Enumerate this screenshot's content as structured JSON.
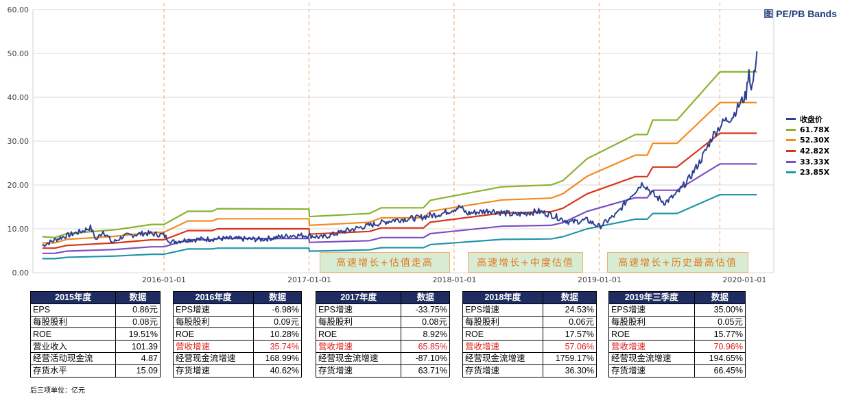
{
  "chart_data": {
    "type": "line",
    "title": "图 PE/PB Bands",
    "y_ticks": [
      "60.00",
      "50.00",
      "40.00",
      "30.00",
      "20.00",
      "10.00",
      "0.00"
    ],
    "ylim": [
      0,
      60
    ],
    "x_ticks": [
      "2016-01-01",
      "2017-01-01",
      "2018-01-01",
      "2019-01-01",
      "2020-01-01"
    ],
    "legend_position": "right",
    "grid": true,
    "vertical_markers": [
      "2016-01-01",
      "2016-12-31",
      "2017-12-31",
      "2018-12-31",
      "2019-10-31"
    ],
    "series": [
      {
        "name": "收盘价",
        "color": "#2b3f8f",
        "points": [
          [
            "2015-03-01",
            6.2
          ],
          [
            "2015-04-15",
            8.0
          ],
          [
            "2015-06-10",
            9.5
          ],
          [
            "2015-06-30",
            10.3
          ],
          [
            "2015-07-15",
            7.5
          ],
          [
            "2015-08-01",
            9.5
          ],
          [
            "2015-08-25",
            6.8
          ],
          [
            "2015-09-20",
            8.3
          ],
          [
            "2015-11-15",
            9.0
          ],
          [
            "2015-12-31",
            8.6
          ],
          [
            "2016-01-20",
            7.0
          ],
          [
            "2016-03-01",
            7.5
          ],
          [
            "2016-06-01",
            7.8
          ],
          [
            "2016-09-01",
            7.6
          ],
          [
            "2016-11-20",
            8.5
          ],
          [
            "2016-12-31",
            8.5
          ],
          [
            "2017-02-01",
            8.0
          ],
          [
            "2017-04-01",
            9.5
          ],
          [
            "2017-06-01",
            10.8
          ],
          [
            "2017-08-01",
            12.0
          ],
          [
            "2017-10-01",
            12.5
          ],
          [
            "2017-12-01",
            13.5
          ],
          [
            "2018-01-15",
            15.0
          ],
          [
            "2018-02-01",
            13.5
          ],
          [
            "2018-04-01",
            14.2
          ],
          [
            "2018-06-01",
            13.2
          ],
          [
            "2018-08-01",
            14.0
          ],
          [
            "2018-09-01",
            13.2
          ],
          [
            "2018-10-20",
            11.5
          ],
          [
            "2018-12-01",
            12.0
          ],
          [
            "2019-01-01",
            10.5
          ],
          [
            "2019-02-15",
            13.5
          ],
          [
            "2019-03-15",
            17.0
          ],
          [
            "2019-04-20",
            20.5
          ],
          [
            "2019-05-20",
            17.5
          ],
          [
            "2019-06-15",
            16.0
          ],
          [
            "2019-07-15",
            18.0
          ],
          [
            "2019-08-15",
            21.5
          ],
          [
            "2019-09-15",
            26.0
          ],
          [
            "2019-10-15",
            31.5
          ],
          [
            "2019-11-10",
            34.5
          ],
          [
            "2019-12-01",
            35.5
          ],
          [
            "2019-12-20",
            38.5
          ],
          [
            "2020-01-05",
            40.5
          ],
          [
            "2020-01-12",
            46.5
          ],
          [
            "2020-01-18",
            41.5
          ],
          [
            "2020-01-25",
            45.0
          ],
          [
            "2020-02-01",
            50.5
          ]
        ]
      },
      {
        "name": "61.78X",
        "color": "#8ab22e",
        "points": [
          [
            "2015-03-01",
            8.2
          ],
          [
            "2015-04-01",
            8.0
          ],
          [
            "2015-05-01",
            8.9
          ],
          [
            "2015-09-01",
            9.8
          ],
          [
            "2015-12-01",
            11.0
          ],
          [
            "2016-01-01",
            11.0
          ],
          [
            "2016-03-01",
            14.0
          ],
          [
            "2016-05-01",
            14.0
          ],
          [
            "2016-05-15",
            14.6
          ],
          [
            "2016-12-31",
            14.5
          ],
          [
            "2017-01-01",
            12.8
          ],
          [
            "2017-06-01",
            13.5
          ],
          [
            "2017-07-01",
            14.8
          ],
          [
            "2017-10-15",
            14.8
          ],
          [
            "2017-11-01",
            16.5
          ],
          [
            "2018-05-01",
            19.6
          ],
          [
            "2018-09-01",
            20.0
          ],
          [
            "2018-10-01",
            21.0
          ],
          [
            "2018-12-01",
            26.0
          ],
          [
            "2019-04-01",
            31.5
          ],
          [
            "2019-05-01",
            31.5
          ],
          [
            "2019-05-15",
            34.8
          ],
          [
            "2019-07-15",
            34.8
          ],
          [
            "2019-10-31",
            45.8
          ],
          [
            "2020-02-01",
            45.8
          ]
        ]
      },
      {
        "name": "52.30X",
        "color": "#f28a1e",
        "points": [
          [
            "2015-03-01",
            6.8
          ],
          [
            "2015-04-01",
            6.8
          ],
          [
            "2015-05-01",
            7.6
          ],
          [
            "2015-09-01",
            8.3
          ],
          [
            "2015-12-01",
            9.2
          ],
          [
            "2016-01-01",
            9.2
          ],
          [
            "2016-03-01",
            11.8
          ],
          [
            "2016-05-01",
            11.8
          ],
          [
            "2016-05-15",
            12.3
          ],
          [
            "2016-12-31",
            12.3
          ],
          [
            "2017-01-01",
            10.8
          ],
          [
            "2017-06-01",
            11.5
          ],
          [
            "2017-07-01",
            12.5
          ],
          [
            "2017-10-15",
            12.5
          ],
          [
            "2017-11-01",
            14.0
          ],
          [
            "2018-05-01",
            16.6
          ],
          [
            "2018-09-01",
            17.0
          ],
          [
            "2018-10-01",
            18.0
          ],
          [
            "2018-12-01",
            22.0
          ],
          [
            "2019-04-01",
            26.8
          ],
          [
            "2019-05-01",
            26.8
          ],
          [
            "2019-05-15",
            29.5
          ],
          [
            "2019-07-15",
            29.5
          ],
          [
            "2019-10-31",
            38.8
          ],
          [
            "2020-02-01",
            38.8
          ]
        ]
      },
      {
        "name": "42.82X",
        "color": "#d9341a",
        "points": [
          [
            "2015-03-01",
            5.6
          ],
          [
            "2015-04-01",
            5.6
          ],
          [
            "2015-05-01",
            6.2
          ],
          [
            "2015-09-01",
            6.8
          ],
          [
            "2015-12-01",
            7.5
          ],
          [
            "2016-01-01",
            7.5
          ],
          [
            "2016-03-01",
            9.6
          ],
          [
            "2016-05-01",
            9.6
          ],
          [
            "2016-05-15",
            10.0
          ],
          [
            "2016-12-31",
            10.0
          ],
          [
            "2017-01-01",
            8.8
          ],
          [
            "2017-06-01",
            9.4
          ],
          [
            "2017-07-01",
            10.2
          ],
          [
            "2017-10-15",
            10.2
          ],
          [
            "2017-11-01",
            11.5
          ],
          [
            "2018-05-01",
            13.6
          ],
          [
            "2018-09-01",
            13.9
          ],
          [
            "2018-10-01",
            14.7
          ],
          [
            "2018-12-01",
            18.0
          ],
          [
            "2019-04-01",
            21.9
          ],
          [
            "2019-05-01",
            21.9
          ],
          [
            "2019-05-15",
            24.1
          ],
          [
            "2019-07-15",
            24.1
          ],
          [
            "2019-10-31",
            31.8
          ],
          [
            "2020-02-01",
            31.8
          ]
        ]
      },
      {
        "name": "33.33X",
        "color": "#7b4fc4",
        "points": [
          [
            "2015-03-01",
            4.4
          ],
          [
            "2015-04-01",
            4.4
          ],
          [
            "2015-05-01",
            4.9
          ],
          [
            "2015-09-01",
            5.3
          ],
          [
            "2015-12-01",
            5.9
          ],
          [
            "2016-01-01",
            5.9
          ],
          [
            "2016-03-01",
            7.5
          ],
          [
            "2016-05-01",
            7.5
          ],
          [
            "2016-05-15",
            7.8
          ],
          [
            "2016-12-31",
            7.8
          ],
          [
            "2017-01-01",
            6.9
          ],
          [
            "2017-06-01",
            7.3
          ],
          [
            "2017-07-01",
            8.0
          ],
          [
            "2017-10-15",
            8.0
          ],
          [
            "2017-11-01",
            8.9
          ],
          [
            "2018-05-01",
            10.6
          ],
          [
            "2018-09-01",
            10.8
          ],
          [
            "2018-10-01",
            11.4
          ],
          [
            "2018-12-01",
            14.0
          ],
          [
            "2019-04-01",
            17.1
          ],
          [
            "2019-05-01",
            17.1
          ],
          [
            "2019-05-15",
            18.8
          ],
          [
            "2019-07-15",
            18.8
          ],
          [
            "2019-10-31",
            24.8
          ],
          [
            "2020-02-01",
            24.8
          ]
        ]
      },
      {
        "name": "23.85X",
        "color": "#2196a8",
        "points": [
          [
            "2015-03-01",
            3.2
          ],
          [
            "2015-04-01",
            3.2
          ],
          [
            "2015-05-01",
            3.5
          ],
          [
            "2015-09-01",
            3.8
          ],
          [
            "2015-12-01",
            4.2
          ],
          [
            "2016-01-01",
            4.2
          ],
          [
            "2016-03-01",
            5.4
          ],
          [
            "2016-05-01",
            5.4
          ],
          [
            "2016-05-15",
            5.6
          ],
          [
            "2016-12-31",
            5.6
          ],
          [
            "2017-01-01",
            4.9
          ],
          [
            "2017-06-01",
            5.2
          ],
          [
            "2017-07-01",
            5.7
          ],
          [
            "2017-10-15",
            5.7
          ],
          [
            "2017-11-01",
            6.4
          ],
          [
            "2018-05-01",
            7.6
          ],
          [
            "2018-09-01",
            7.7
          ],
          [
            "2018-10-01",
            8.2
          ],
          [
            "2018-12-01",
            10.0
          ],
          [
            "2019-04-01",
            12.2
          ],
          [
            "2019-05-01",
            12.2
          ],
          [
            "2019-05-15",
            13.5
          ],
          [
            "2019-07-15",
            13.5
          ],
          [
            "2019-10-31",
            17.8
          ],
          [
            "2020-02-01",
            17.8
          ]
        ]
      }
    ]
  },
  "annotations": [
    "高速增长+估值走高",
    "高速增长+中度估值",
    "高速增长+历史最高估值"
  ],
  "tables": [
    {
      "header": [
        "2015年度",
        "数据"
      ],
      "rows": [
        [
          "EPS",
          "0.86元"
        ],
        [
          "每股股利",
          "0.08元"
        ],
        [
          "ROE",
          "19.51%"
        ],
        [
          "营业收入",
          "101.39"
        ],
        [
          "经营活动现金流",
          "4.87"
        ],
        [
          "存货水平",
          "15.09"
        ]
      ]
    },
    {
      "header": [
        "2016年度",
        "数据"
      ],
      "rows": [
        [
          "EPS增速",
          "-6.98%"
        ],
        [
          "每股股利",
          "0.09元"
        ],
        [
          "ROE",
          "10.28%"
        ],
        [
          "营收增速",
          "35.74%"
        ],
        [
          "经营现金流增速",
          "168.99%"
        ],
        [
          "存货增速",
          "40.62%"
        ]
      ]
    },
    {
      "header": [
        "2017年度",
        "数据"
      ],
      "rows": [
        [
          "EPS增速",
          "-33.75%"
        ],
        [
          "每股股利",
          "0.08元"
        ],
        [
          "ROE",
          "8.92%"
        ],
        [
          "营收增速",
          "65.85%"
        ],
        [
          "经营现金流增速",
          "-87.10%"
        ],
        [
          "存货增速",
          "63.71%"
        ]
      ]
    },
    {
      "header": [
        "2018年度",
        "数据"
      ],
      "rows": [
        [
          "EPS增速",
          "24.53%"
        ],
        [
          "每股股利",
          "0.06元"
        ],
        [
          "ROE",
          "17.57%"
        ],
        [
          "营收增速",
          "57.06%"
        ],
        [
          "经营现金流增速",
          "1759.17%"
        ],
        [
          "存货增速",
          "36.30%"
        ]
      ]
    },
    {
      "header": [
        "2019年三季度",
        "数据"
      ],
      "rows": [
        [
          "EPS增速",
          "35.00%"
        ],
        [
          "每股股利",
          "0.05元"
        ],
        [
          "ROE",
          "15.77%"
        ],
        [
          "营收增速",
          "70.96%"
        ],
        [
          "经营现金流增速",
          "194.65%"
        ],
        [
          "存货增速",
          "66.45%"
        ]
      ]
    }
  ],
  "footnote": "后三项单位：亿元"
}
